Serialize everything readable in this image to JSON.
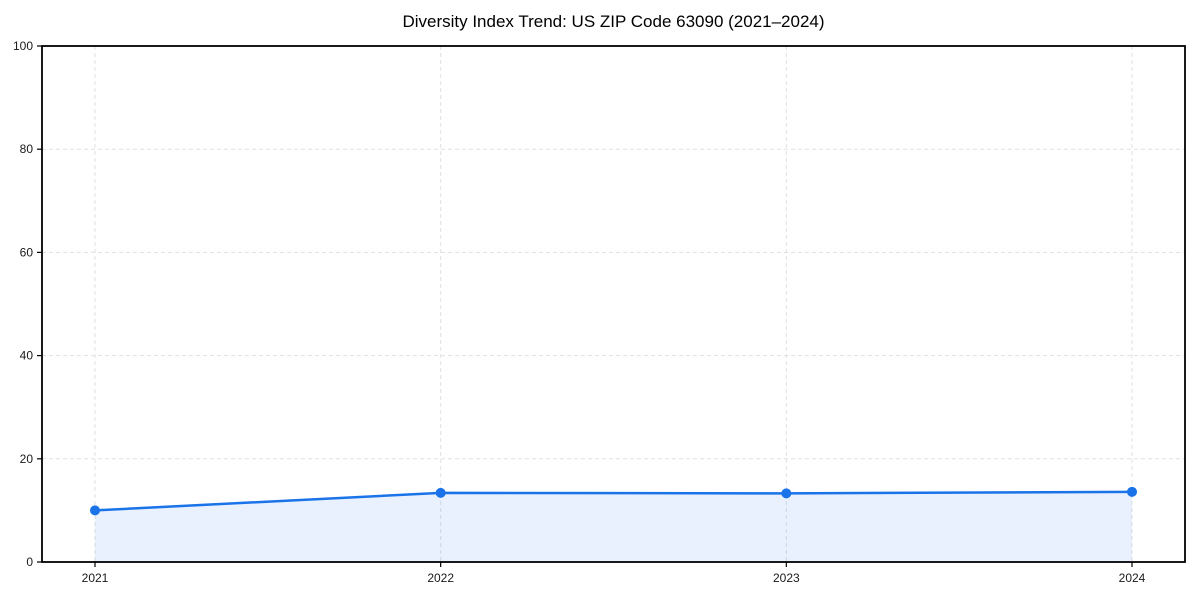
{
  "page": {
    "background": "#ffffff"
  },
  "chart_data": {
    "type": "line",
    "title": "Diversity Index Trend: US ZIP Code 63090 (2021–2024)",
    "x": [
      "2021",
      "2022",
      "2023",
      "2024"
    ],
    "values": [
      10.0,
      13.4,
      13.3,
      13.6
    ],
    "xlabel": "",
    "ylabel": "",
    "ylim": [
      0,
      100
    ],
    "yticks": [
      0,
      20,
      40,
      60,
      80,
      100
    ],
    "grid": "dashed",
    "legend_position": "none",
    "area_fill": true,
    "marker": "circle",
    "colors": {
      "line": "#1a73e8",
      "marker": "#1a73e8",
      "area": "rgba(26,115,232,0.10)",
      "grid": "#e1e1e1",
      "spine": "#000000",
      "tick": "#000000",
      "tick_label": "#1a1a1a",
      "title": "#000000"
    }
  }
}
